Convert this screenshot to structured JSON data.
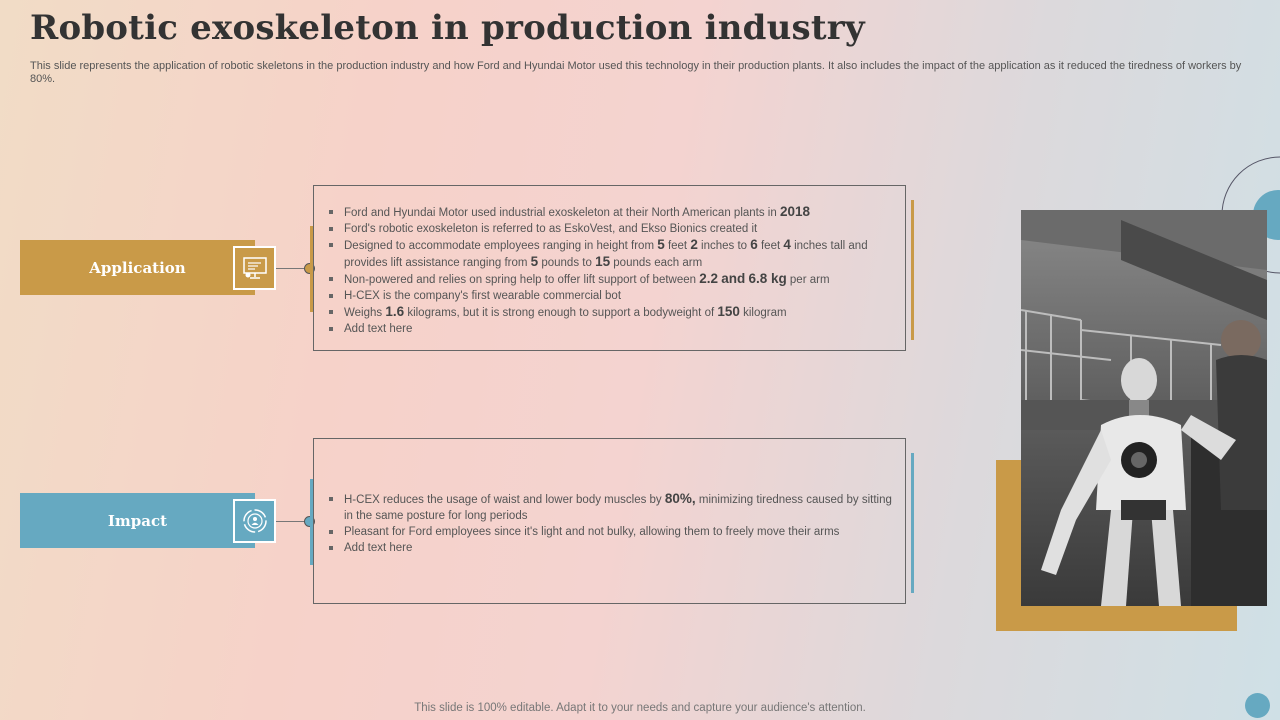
{
  "title": "Robotic exoskeleton in production industry",
  "subtitle": "This slide represents the application of robotic skeletons in the production industry and how Ford and Hyundai Motor used this technology in their production plants. It also includes the impact of the application as it reduced the tiredness of workers by 80%.",
  "sections": {
    "application": {
      "label": "Application",
      "icon": "presentation-board-icon",
      "color": "#c99a48",
      "bullets": [
        {
          "pre": "Ford and Hyundai Motor used industrial exoskeleton at their North American plants in ",
          "num": "2018",
          "post": ""
        },
        {
          "pre": "Ford's robotic exoskeleton is referred to as EskoVest, and Ekso Bionics created it",
          "num": "",
          "post": ""
        },
        {
          "pre": "Designed to accommodate employees ranging in height from ",
          "n1": "5",
          "m1": " feet ",
          "n2": "2",
          "m2": " inches to ",
          "n3": "6",
          "m3": " feet ",
          "n4": "4",
          "m4": " inches tall and provides lift assistance ranging from ",
          "n5": "5",
          "m5": " pounds to ",
          "n6": "15",
          "m6": " pounds each arm"
        },
        {
          "pre": "Non-powered and relies on spring help to offer lift support of between ",
          "n1": "2.2",
          "m1": " ",
          "n2": "and",
          "m2": " ",
          "n3": "6.8 kg",
          "post": " per arm"
        },
        {
          "pre": "H-CEX is the company's first wearable commercial bot",
          "num": "",
          "post": ""
        },
        {
          "pre": "Weighs ",
          "n1": "1.6",
          "m1": " kilograms, but it is strong enough to support a bodyweight of ",
          "n2": "150",
          "post": " kilogram"
        },
        {
          "pre": "Add text here",
          "num": "",
          "post": ""
        }
      ]
    },
    "impact": {
      "label": "Impact",
      "icon": "person-cycle-icon",
      "color": "#66a9c1",
      "bullets": [
        {
          "pre": "H-CEX reduces the usage of waist and lower body muscles by ",
          "num": "80%,",
          "post": " minimizing tiredness caused by sitting in the same posture for long periods"
        },
        {
          "pre": "Pleasant for Ford employees since it's light and not bulky, allowing them to freely move their arms",
          "num": "",
          "post": ""
        },
        {
          "pre": "Add text here",
          "num": "",
          "post": ""
        }
      ]
    }
  },
  "image": {
    "icon": "robot-photo-icon"
  },
  "footer": "This slide is 100% editable. Adapt it to your needs and capture your audience's attention."
}
